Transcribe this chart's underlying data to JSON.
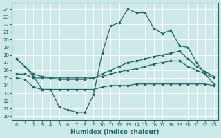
{
  "xlabel": "Humidex (Indice chaleur)",
  "bg_color": "#cce8e8",
  "line_color": "#1a6868",
  "xlim": [
    -0.5,
    23.5
  ],
  "ylim": [
    9.5,
    24.8
  ],
  "xticks": [
    0,
    1,
    2,
    3,
    4,
    5,
    6,
    7,
    8,
    9,
    10,
    11,
    12,
    13,
    14,
    15,
    16,
    17,
    18,
    19,
    20,
    21,
    22,
    23
  ],
  "yticks": [
    10,
    11,
    12,
    13,
    14,
    15,
    16,
    17,
    18,
    19,
    20,
    21,
    22,
    23,
    24
  ],
  "line1_x": [
    0,
    1,
    2,
    3,
    4,
    5,
    6,
    7,
    8,
    9,
    10,
    11,
    12,
    13,
    14,
    15,
    16,
    17,
    18,
    19,
    20,
    21,
    22,
    23
  ],
  "line1_y": [
    17.5,
    16.5,
    15.2,
    13.5,
    13.5,
    11.2,
    10.8,
    10.5,
    10.5,
    12.8,
    18.2,
    21.8,
    22.2,
    24.0,
    23.5,
    23.5,
    21.5,
    20.8,
    21.2,
    19.2,
    19.0,
    17.0,
    15.5,
    14.2
  ],
  "line2_x": [
    0,
    1,
    2,
    3,
    4,
    5,
    6,
    7,
    8,
    9,
    10,
    11,
    12,
    13,
    14,
    15,
    16,
    17,
    18,
    19,
    20,
    21,
    22,
    23
  ],
  "line2_y": [
    17.5,
    16.5,
    15.5,
    15.2,
    15.0,
    14.8,
    14.8,
    14.8,
    14.8,
    15.0,
    15.5,
    16.0,
    16.5,
    17.0,
    17.2,
    17.5,
    17.8,
    18.0,
    18.2,
    18.5,
    17.5,
    16.5,
    15.8,
    15.2
  ],
  "line3_x": [
    0,
    1,
    2,
    3,
    4,
    5,
    6,
    7,
    8,
    9,
    10,
    11,
    12,
    13,
    14,
    15,
    16,
    17,
    18,
    19,
    20,
    21,
    22,
    23
  ],
  "line3_y": [
    15.5,
    15.5,
    15.0,
    15.0,
    15.0,
    15.0,
    15.0,
    15.0,
    15.0,
    15.0,
    15.2,
    15.5,
    15.8,
    16.0,
    16.2,
    16.5,
    16.8,
    17.0,
    17.2,
    17.2,
    16.5,
    16.0,
    15.5,
    15.0
  ],
  "line4_x": [
    0,
    1,
    2,
    3,
    4,
    5,
    6,
    7,
    8,
    9,
    10,
    11,
    12,
    13,
    14,
    15,
    16,
    17,
    18,
    19,
    20,
    21,
    22,
    23
  ],
  "line4_y": [
    15.0,
    14.8,
    13.8,
    13.5,
    13.5,
    13.5,
    13.5,
    13.5,
    13.5,
    13.5,
    13.8,
    14.0,
    14.0,
    14.0,
    14.2,
    14.2,
    14.2,
    14.2,
    14.2,
    14.2,
    14.2,
    14.2,
    14.2,
    14.0
  ]
}
